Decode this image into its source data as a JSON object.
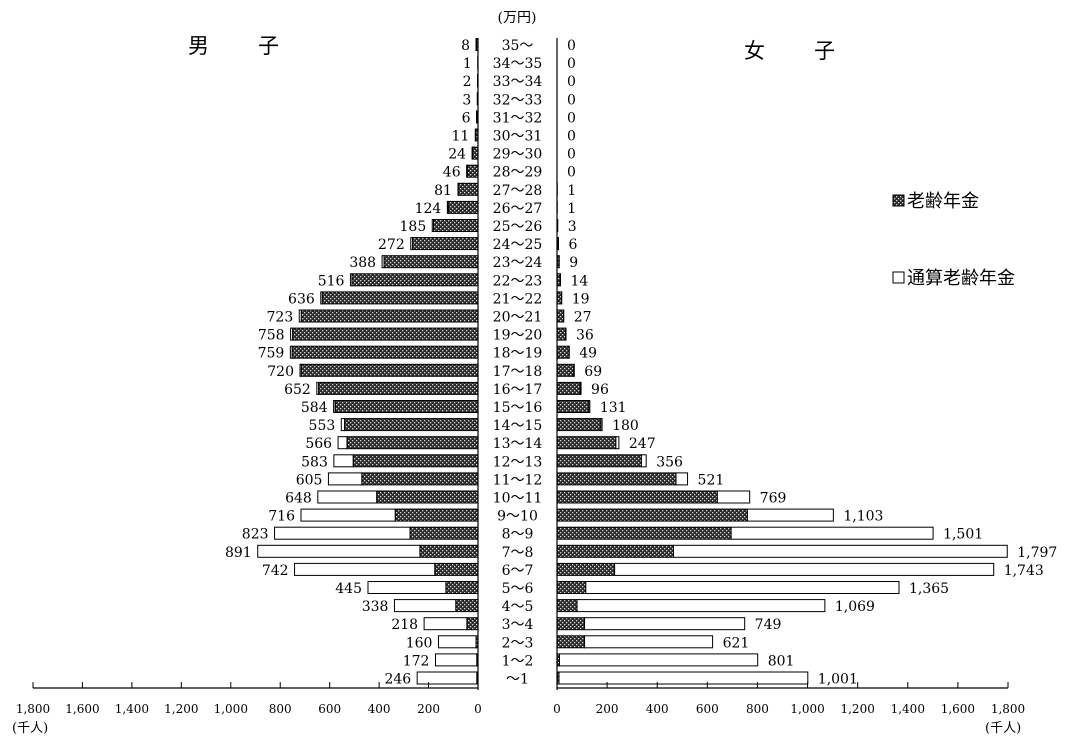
{
  "chart_data": {
    "type": "bar",
    "orientation": "horizontal",
    "layout": "population-pyramid",
    "unit_top": "(万円)",
    "left_title": "男　子",
    "right_title": "女　子",
    "left_unit": "(千人)",
    "right_unit": "(千人)",
    "categories": [
      "35～",
      "34～35",
      "33～34",
      "32～33",
      "31～32",
      "30～31",
      "29～30",
      "28～29",
      "27～28",
      "26～27",
      "25～26",
      "24～25",
      "23～24",
      "22～23",
      "21～22",
      "20～21",
      "19～20",
      "18～19",
      "17～18",
      "16～17",
      "15～16",
      "14～15",
      "13～14",
      "12～13",
      "11～12",
      "10～11",
      "9～10",
      "8～9",
      "7～8",
      "6～7",
      "5～6",
      "4～5",
      "3～4",
      "2～3",
      "1～2",
      "～1"
    ],
    "legend": [
      {
        "key": "old_age",
        "label": "老齢年金",
        "pattern": "hatched"
      },
      {
        "key": "combined",
        "label": "通算老齢年金",
        "pattern": "white"
      }
    ],
    "male": {
      "old_age": [
        6,
        1,
        1,
        1,
        4,
        9,
        22,
        44,
        80,
        120,
        180,
        265,
        380,
        510,
        630,
        715,
        750,
        752,
        715,
        645,
        578,
        540,
        530,
        505,
        470,
        410,
        335,
        275,
        235,
        175,
        130,
        90,
        45,
        8,
        5,
        5
      ],
      "combined": [
        2,
        0,
        1,
        2,
        2,
        2,
        2,
        2,
        1,
        4,
        5,
        7,
        8,
        6,
        6,
        8,
        8,
        7,
        5,
        7,
        6,
        13,
        36,
        78,
        135,
        238,
        381,
        548,
        656,
        567,
        315,
        248,
        173,
        152,
        167,
        241
      ],
      "total_labels": [
        "8",
        "1",
        "2",
        "3",
        "6",
        "11",
        "24",
        "46",
        "81",
        "124",
        "185",
        "272",
        "388",
        "516",
        "636",
        "723",
        "758",
        "759",
        "720",
        "652",
        "584",
        "553",
        "566",
        "583",
        "605",
        "648",
        "716",
        "823",
        "891",
        "742",
        "445",
        "338",
        "218",
        "160",
        "172",
        "246"
      ]
    },
    "female": {
      "old_age": [
        0,
        0,
        0,
        0,
        0,
        0,
        0,
        0,
        1,
        1,
        2,
        5,
        8,
        13,
        18,
        26,
        35,
        48,
        67,
        93,
        127,
        175,
        235,
        337,
        475,
        640,
        760,
        695,
        465,
        230,
        115,
        80,
        110,
        110,
        10,
        8
      ],
      "combined": [
        0,
        0,
        0,
        0,
        0,
        0,
        0,
        0,
        0,
        0,
        1,
        1,
        1,
        1,
        1,
        1,
        1,
        1,
        2,
        3,
        4,
        5,
        12,
        19,
        46,
        129,
        343,
        806,
        1332,
        1513,
        1250,
        989,
        639,
        511,
        791,
        993
      ],
      "total_labels": [
        "0",
        "0",
        "0",
        "0",
        "0",
        "0",
        "0",
        "0",
        "1",
        "1",
        "3",
        "6",
        "9",
        "14",
        "19",
        "27",
        "36",
        "49",
        "69",
        "96",
        "131",
        "180",
        "247",
        "356",
        "521",
        "769",
        "1,103",
        "1,501",
        "1,797",
        "1,743",
        "1,365",
        "1,069",
        "749",
        "621",
        "801",
        "1,001"
      ]
    },
    "xlim": [
      0,
      1800
    ],
    "xticks": [
      1800,
      1600,
      1400,
      1200,
      1000,
      800,
      600,
      400,
      200,
      0
    ],
    "left_tick_labels": [
      "1,800",
      "1,600",
      "1,400",
      "1,200",
      "1,000",
      "800",
      "600",
      "400",
      "200",
      "0"
    ],
    "right_tick_labels": [
      "0",
      "200",
      "400",
      "600",
      "800",
      "1,000",
      "1,200",
      "1,400",
      "1,600",
      "1,800"
    ]
  }
}
